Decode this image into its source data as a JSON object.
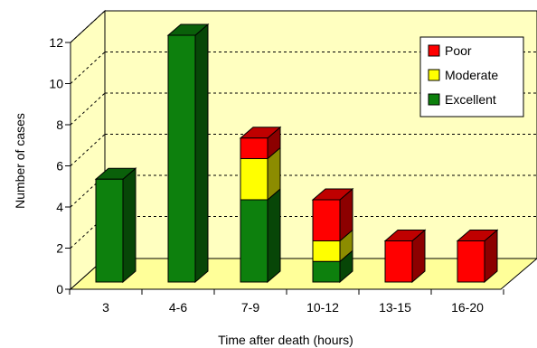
{
  "chart_data": {
    "type": "bar",
    "stacked": true,
    "style": "3d",
    "categories": [
      "3",
      "4-6",
      "7-9",
      "10-12",
      "13-15",
      "16-20"
    ],
    "series": [
      {
        "name": "Excellent",
        "values": [
          5,
          12,
          4,
          1,
          0,
          0
        ],
        "color": "#0d800d"
      },
      {
        "name": "Moderate",
        "values": [
          0,
          0,
          2,
          1,
          0,
          0
        ],
        "color": "#ffff00"
      },
      {
        "name": "Poor",
        "values": [
          0,
          0,
          1,
          2,
          2,
          2
        ],
        "color": "#ff0000"
      }
    ],
    "xlabel": "Time after death (hours)",
    "ylabel": "Number of cases",
    "ylim": [
      0,
      12
    ],
    "yticks": [
      "0",
      "2",
      "4",
      "6",
      "8",
      "10",
      "12"
    ],
    "grid": true,
    "legend": "top-right",
    "colors": {
      "wall": "#ffffc0",
      "floor": "#ffff99"
    }
  }
}
